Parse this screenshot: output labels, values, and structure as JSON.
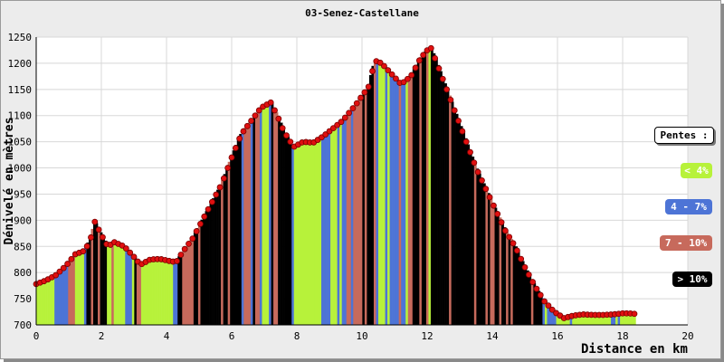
{
  "chart_data": {
    "type": "area",
    "title": "03-Senez-Castellane",
    "xlabel": "Distance en km",
    "ylabel": "Dénivelé en mètres",
    "xlim": [
      0,
      20
    ],
    "ylim": [
      700,
      1250
    ],
    "x_ticks": [
      "0",
      "2",
      "4",
      "6",
      "8",
      "10",
      "12",
      "14",
      "16",
      "18",
      "20"
    ],
    "y_ticks": [
      "700",
      "750",
      "800",
      "850",
      "900",
      "950",
      "1000",
      "1050",
      "1100",
      "1150",
      "1200",
      "1250"
    ],
    "grid": true,
    "legend_position": "right",
    "legend": {
      "title": "Pentes :",
      "items": [
        {
          "label": "< 4%",
          "color": "#b7f23a",
          "text_color": "#ffffff"
        },
        {
          "label": "4 - 7%",
          "color": "#4d74d6",
          "text_color": "#ffffff"
        },
        {
          "label": "7 - 10%",
          "color": "#c76a5c",
          "text_color": "#ffffff"
        },
        {
          "label": "> 10%",
          "color": "#000000",
          "text_color": "#ffffff"
        }
      ]
    },
    "profile": [
      [
        0,
        778
      ],
      [
        0.3,
        785
      ],
      [
        0.6,
        795
      ],
      [
        0.9,
        812
      ],
      [
        1.2,
        835
      ],
      [
        1.5,
        842
      ],
      [
        1.7,
        870
      ],
      [
        1.8,
        897
      ],
      [
        2.0,
        872
      ],
      [
        2.2,
        850
      ],
      [
        2.4,
        858
      ],
      [
        2.7,
        850
      ],
      [
        3.0,
        830
      ],
      [
        3.2,
        815
      ],
      [
        3.5,
        825
      ],
      [
        3.8,
        826
      ],
      [
        4.1,
        822
      ],
      [
        4.3,
        820
      ],
      [
        4.5,
        840
      ],
      [
        4.8,
        865
      ],
      [
        5.1,
        900
      ],
      [
        5.4,
        935
      ],
      [
        5.7,
        970
      ],
      [
        6.0,
        1020
      ],
      [
        6.3,
        1065
      ],
      [
        6.6,
        1090
      ],
      [
        6.9,
        1115
      ],
      [
        7.2,
        1125
      ],
      [
        7.4,
        1100
      ],
      [
        7.6,
        1070
      ],
      [
        7.9,
        1040
      ],
      [
        8.2,
        1050
      ],
      [
        8.5,
        1048
      ],
      [
        8.8,
        1060
      ],
      [
        9.1,
        1075
      ],
      [
        9.4,
        1090
      ],
      [
        9.8,
        1120
      ],
      [
        10.2,
        1155
      ],
      [
        10.4,
        1205
      ],
      [
        10.6,
        1200
      ],
      [
        10.9,
        1180
      ],
      [
        11.2,
        1160
      ],
      [
        11.5,
        1175
      ],
      [
        11.8,
        1210
      ],
      [
        12.1,
        1232
      ],
      [
        12.3,
        1200
      ],
      [
        12.6,
        1150
      ],
      [
        12.9,
        1100
      ],
      [
        13.2,
        1050
      ],
      [
        13.5,
        1000
      ],
      [
        13.8,
        960
      ],
      [
        14.1,
        920
      ],
      [
        14.4,
        880
      ],
      [
        14.7,
        850
      ],
      [
        15.0,
        810
      ],
      [
        15.3,
        775
      ],
      [
        15.6,
        745
      ],
      [
        15.9,
        725
      ],
      [
        16.2,
        713
      ],
      [
        16.5,
        718
      ],
      [
        16.8,
        720
      ],
      [
        17.1,
        719
      ],
      [
        17.4,
        719
      ],
      [
        17.7,
        720
      ],
      [
        18.0,
        722
      ],
      [
        18.2,
        722
      ],
      [
        18.4,
        721
      ]
    ],
    "slope_colors": [
      "#b7f23a",
      "#4d74d6",
      "#c76a5c",
      "#000000"
    ]
  }
}
